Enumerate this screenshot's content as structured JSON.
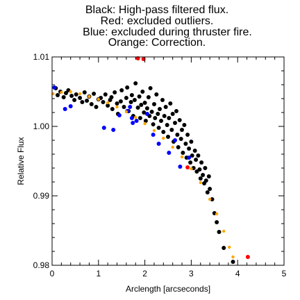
{
  "chart_data": {
    "type": "scatter",
    "title_lines": [
      "Black: High-pass filtered flux.",
      "Red: excluded outliers.",
      "Blue: excluded during thruster fire.",
      "Orange: Correction."
    ],
    "xlabel": "Arclength [arcseconds]",
    "ylabel": "Relative Flux",
    "xlim": [
      0,
      5
    ],
    "ylim": [
      0.98,
      1.01
    ],
    "x_ticks": [
      "0",
      "1",
      "2",
      "3",
      "4",
      "5"
    ],
    "y_ticks": [
      "0.98",
      "0.99",
      "1.00",
      "1.01"
    ],
    "grid": false,
    "series": [
      {
        "color": "#000000",
        "points": [
          [
            0.08,
            1.0055
          ],
          [
            0.12,
            1.0045
          ],
          [
            0.18,
            1.005
          ],
          [
            0.25,
            1.0042
          ],
          [
            0.3,
            1.0048
          ],
          [
            0.35,
            1.0052
          ],
          [
            0.42,
            1.0044
          ],
          [
            0.48,
            1.0038
          ],
          [
            0.52,
            1.0046
          ],
          [
            0.6,
            1.0041
          ],
          [
            0.65,
            1.0035
          ],
          [
            0.7,
            1.0049
          ],
          [
            0.75,
            1.0037
          ],
          [
            0.8,
            1.0043
          ],
          [
            0.85,
            1.0032
          ],
          [
            0.9,
            1.0047
          ],
          [
            0.95,
            1.0028
          ],
          [
            1.0,
            1.0039
          ],
          [
            1.05,
            1.0041
          ],
          [
            1.1,
            1.0035
          ],
          [
            1.15,
            1.0046
          ],
          [
            1.2,
            1.003
          ],
          [
            1.25,
            1.0038
          ],
          [
            1.28,
            1.0042
          ],
          [
            1.3,
            1.0025
          ],
          [
            1.35,
            1.0049
          ],
          [
            1.4,
            1.0033
          ],
          [
            1.42,
            1.0018
          ],
          [
            1.48,
            1.0036
          ],
          [
            1.5,
            1.0052
          ],
          [
            1.55,
            1.0028
          ],
          [
            1.6,
            1.0041
          ],
          [
            1.62,
            1.0056
          ],
          [
            1.65,
            1.0022
          ],
          [
            1.7,
            1.0035
          ],
          [
            1.72,
            1.0045
          ],
          [
            1.75,
            1.0015
          ],
          [
            1.78,
            1.0038
          ],
          [
            1.8,
            1.0062
          ],
          [
            1.85,
            1.0027
          ],
          [
            1.88,
            1.0043
          ],
          [
            1.9,
            1.0012
          ],
          [
            1.92,
            1.0031
          ],
          [
            1.95,
            1.005
          ],
          [
            1.98,
            1.002
          ],
          [
            2.0,
            1.0034
          ],
          [
            2.02,
            1.0008
          ],
          [
            2.05,
            1.0026
          ],
          [
            2.08,
            1.0042
          ],
          [
            2.1,
            1.0015
          ],
          [
            2.12,
            1.0055
          ],
          [
            2.15,
            1.0021
          ],
          [
            2.18,
            1.0003
          ],
          [
            2.2,
            1.0032
          ],
          [
            2.22,
            1.0012
          ],
          [
            2.25,
            1.0046
          ],
          [
            2.28,
            1.0018
          ],
          [
            2.3,
            0.9998
          ],
          [
            2.32,
            1.0025
          ],
          [
            2.35,
            1.0008
          ],
          [
            2.38,
            1.0038
          ],
          [
            2.4,
            0.9992
          ],
          [
            2.42,
            1.0015
          ],
          [
            2.45,
            1.0028
          ],
          [
            2.48,
            1.0002
          ],
          [
            2.5,
            0.9985
          ],
          [
            2.52,
            1.0012
          ],
          [
            2.55,
            1.0033
          ],
          [
            2.58,
            0.9995
          ],
          [
            2.6,
            1.0018
          ],
          [
            2.62,
            0.9978
          ],
          [
            2.65,
            1.0005
          ],
          [
            2.68,
            1.0022
          ],
          [
            2.7,
            0.9988
          ],
          [
            2.72,
            0.997
          ],
          [
            2.75,
            1.0009
          ],
          [
            2.78,
            0.9982
          ],
          [
            2.8,
            0.9995
          ],
          [
            2.82,
            0.9962
          ],
          [
            2.85,
            1.0002
          ],
          [
            2.88,
            0.9975
          ],
          [
            2.9,
            0.9955
          ],
          [
            2.92,
            0.9988
          ],
          [
            2.95,
            0.9968
          ],
          [
            2.98,
            0.9948
          ],
          [
            3.0,
            0.9978
          ],
          [
            3.02,
            0.9958
          ],
          [
            3.05,
            0.994
          ],
          [
            3.08,
            0.9965
          ],
          [
            3.1,
            0.9952
          ],
          [
            3.12,
            0.9935
          ],
          [
            3.15,
            0.9958
          ],
          [
            3.18,
            0.9938
          ],
          [
            3.2,
            0.9925
          ],
          [
            3.22,
            0.9948
          ],
          [
            3.25,
            0.993
          ],
          [
            3.28,
            0.9918
          ],
          [
            3.3,
            0.994
          ],
          [
            3.32,
            0.9922
          ],
          [
            3.35,
            0.9905
          ],
          [
            3.38,
            0.9928
          ],
          [
            3.4,
            0.991
          ],
          [
            3.45,
            0.9895
          ],
          [
            3.5,
            0.9875
          ],
          [
            3.55,
            0.9862
          ],
          [
            3.6,
            0.9848
          ],
          [
            3.7,
            0.9825
          ],
          [
            3.9,
            0.9805
          ]
        ]
      },
      {
        "color": "#ff0000",
        "points": [
          [
            1.85,
            1.0098
          ],
          [
            1.97,
            1.0097
          ],
          [
            2.92,
            0.9941
          ],
          [
            4.22,
            0.9812
          ]
        ]
      },
      {
        "color": "#0000ff",
        "points": [
          [
            0.05,
            1.0056
          ],
          [
            0.28,
            1.0025
          ],
          [
            0.4,
            1.0029
          ],
          [
            1.45,
            1.0016
          ],
          [
            1.62,
            1.0022
          ],
          [
            1.68,
            1.0028
          ],
          [
            1.72,
            1.0012
          ],
          [
            1.74,
            1.0005
          ],
          [
            1.82,
            1.0008
          ],
          [
            2.05,
            1.0018
          ],
          [
            2.18,
            0.9988
          ],
          [
            2.3,
            0.9975
          ],
          [
            2.52,
            0.9962
          ],
          [
            2.65,
            0.998
          ],
          [
            2.76,
            0.9942
          ],
          [
            2.95,
            0.9955
          ],
          [
            1.12,
            0.9998
          ],
          [
            1.32,
            0.9995
          ]
        ]
      },
      {
        "color": "#ffa500",
        "points": [
          [
            0.02,
            1.0047
          ],
          [
            0.2,
            1.0049
          ],
          [
            0.4,
            1.005
          ],
          [
            0.6,
            1.0047
          ],
          [
            0.8,
            1.0043
          ],
          [
            1.0,
            1.0039
          ],
          [
            1.2,
            1.0034
          ],
          [
            1.4,
            1.0028
          ],
          [
            1.6,
            1.0021
          ],
          [
            1.8,
            1.0013
          ],
          [
            2.0,
            1.0004
          ],
          [
            2.2,
            0.9994
          ],
          [
            2.4,
            0.9983
          ],
          [
            2.6,
            0.997
          ],
          [
            2.8,
            0.9956
          ],
          [
            3.0,
            0.9939
          ],
          [
            3.2,
            0.9919
          ],
          [
            3.4,
            0.9895
          ],
          [
            3.55,
            0.9874
          ],
          [
            3.7,
            0.9849
          ],
          [
            3.82,
            0.9826
          ],
          [
            3.9,
            0.9812
          ]
        ]
      }
    ]
  }
}
